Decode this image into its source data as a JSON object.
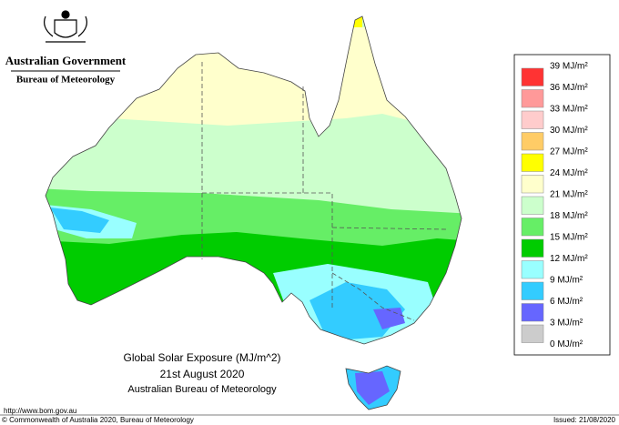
{
  "header": {
    "title": "Australian Government",
    "subtitle": "Bureau of Meteorology"
  },
  "map": {
    "title": "Global Solar Exposure (MJ/m^2)",
    "date": "21st August 2020",
    "source": "Australian Bureau of Meteorology"
  },
  "legend": {
    "labels": [
      "39 MJ/m²",
      "36 MJ/m²",
      "33 MJ/m²",
      "30 MJ/m²",
      "27 MJ/m²",
      "24 MJ/m²",
      "21 MJ/m²",
      "18 MJ/m²",
      "15 MJ/m²",
      "12 MJ/m²",
      "9 MJ/m²",
      "6 MJ/m²",
      "3 MJ/m²",
      "0 MJ/m²"
    ],
    "colors": [
      "#ff3333",
      "#ff9999",
      "#ffcccc",
      "#ffcc66",
      "#ffff00",
      "#ffffcc",
      "#ccffcc",
      "#66ee66",
      "#00cc00",
      "#99ffff",
      "#33ccff",
      "#6666ff",
      "#cccccc"
    ]
  },
  "footer": {
    "url": "http://www.bom.gov.au",
    "copyright": "© Commonwealth of Australia 2020, Bureau of Meteorology",
    "issued": "Issued: 21/08/2020"
  }
}
